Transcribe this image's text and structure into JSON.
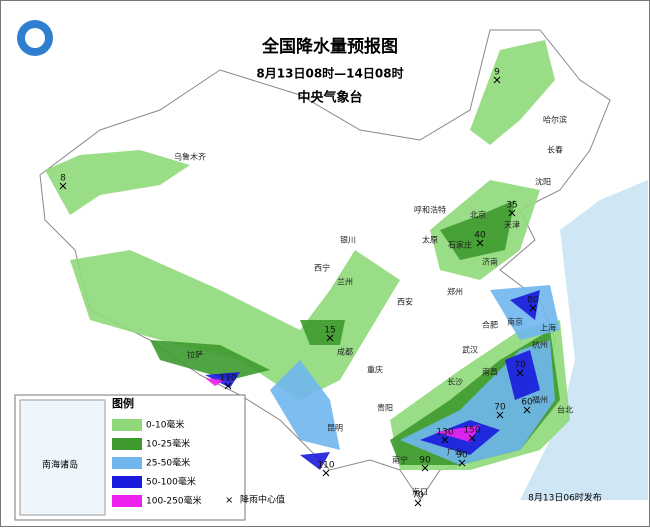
{
  "header": {
    "title": "全国降水量预报图",
    "date_range": "8月13日08时—14日08时",
    "issuer": "中央气象台"
  },
  "legend": {
    "title": "图例",
    "items": [
      {
        "label": "0-10毫米",
        "color": "#8fd97a"
      },
      {
        "label": "10-25毫米",
        "color": "#3e9a2f"
      },
      {
        "label": "25-50毫米",
        "color": "#6fb6ee"
      },
      {
        "label": "50-100毫米",
        "color": "#1a1adc"
      },
      {
        "label": "100-250毫米",
        "color": "#ee22ee"
      }
    ],
    "center_symbol": "×",
    "center_label": "降雨中心值"
  },
  "inset": {
    "label": "南海诸岛"
  },
  "footer": "8月13日06时发布",
  "cities": [
    "哈尔滨",
    "长春",
    "沈阳",
    "乌鲁木齐",
    "呼和浩特",
    "北京",
    "天津",
    "石家庄",
    "太原",
    "银川",
    "西宁",
    "兰州",
    "济南",
    "郑州",
    "西安",
    "合肥",
    "南京",
    "上海",
    "杭州",
    "武汉",
    "成都",
    "重庆",
    "拉萨",
    "长沙",
    "南昌",
    "福州",
    "台北",
    "贵阳",
    "昆明",
    "南宁",
    "广州",
    "海口"
  ],
  "rain_centers": [
    9,
    8,
    35,
    40,
    15,
    110,
    80,
    70,
    70,
    60,
    130,
    150,
    90,
    90,
    110,
    70
  ]
}
